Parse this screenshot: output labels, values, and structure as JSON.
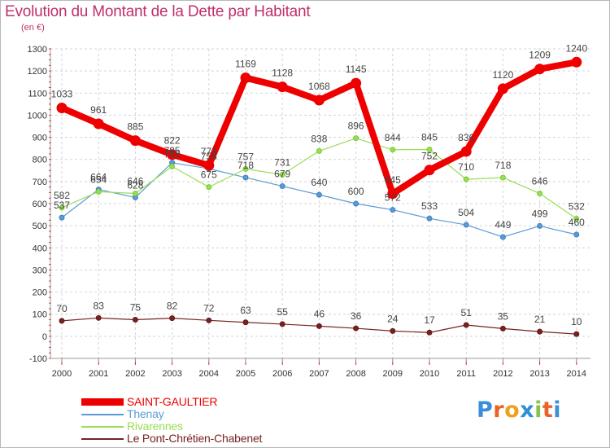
{
  "title": "Evolution du Montant de la Dette par Habitant",
  "subtitle": "(en €)",
  "chart_data": {
    "type": "line",
    "title": "Evolution du Montant de la Dette par Habitant",
    "subtitle": "(en €)",
    "x": [
      2000,
      2001,
      2002,
      2003,
      2004,
      2005,
      2006,
      2007,
      2008,
      2009,
      2010,
      2011,
      2012,
      2013,
      2014
    ],
    "x_tick_labels": [
      "2000",
      "2001",
      "2002",
      "2003",
      "2004",
      "2005",
      "2006",
      "2007",
      "2008",
      "2009",
      "2010",
      "2011",
      "2012",
      "2013",
      "2014"
    ],
    "ylim": [
      -100,
      1300
    ],
    "y_ticks": [
      -100,
      0,
      100,
      200,
      300,
      400,
      500,
      600,
      700,
      800,
      900,
      1000,
      1100,
      1200,
      1300
    ],
    "grid": "dashed",
    "legend_position": "bottom-left",
    "series": [
      {
        "name": "SAINT-GAULTIER",
        "color": "#ee0000",
        "values": [
          1033,
          961,
          885,
          822,
          773,
          1169,
          1128,
          1068,
          1145,
          645,
          752,
          836,
          1120,
          1209,
          1240
        ],
        "labels": [
          "1033",
          "961",
          "885",
          "822",
          "773",
          "1169",
          "1128",
          "1068",
          "1145",
          "645",
          "752",
          "836",
          "1120",
          "1209",
          "1240"
        ]
      },
      {
        "name": "Thenay",
        "color": "#5b9bd5",
        "values": [
          537,
          664,
          628,
          785,
          758,
          718,
          679,
          640,
          600,
          572,
          533,
          504,
          449,
          499,
          460
        ],
        "labels": [
          "537",
          "664",
          "628",
          "785",
          "758",
          "718",
          "679",
          "640",
          "600",
          "572",
          "533",
          "504",
          "449",
          "499",
          "460"
        ]
      },
      {
        "name": "Rivarennes",
        "color": "#99dd55",
        "values": [
          582,
          654,
          646,
          768,
          675,
          757,
          731,
          838,
          896,
          844,
          845,
          710,
          718,
          646,
          532
        ],
        "labels": [
          "582",
          "654",
          "646",
          "768",
          "675",
          "757",
          "731",
          "838",
          "896",
          "844",
          "845",
          "710",
          "718",
          "646",
          "532"
        ]
      },
      {
        "name": "Le Pont-Chrétien-Chabenet",
        "color": "#772222",
        "values": [
          70,
          83,
          75,
          82,
          72,
          63,
          55,
          46,
          36,
          24,
          17,
          51,
          35,
          21,
          10
        ],
        "labels": [
          "70",
          "83",
          "75",
          "82",
          "72",
          "63",
          "55",
          "46",
          "36",
          "24",
          "17",
          "51",
          "35",
          "21",
          "10"
        ]
      }
    ]
  },
  "legend": {
    "items": [
      {
        "label": "SAINT-GAULTIER",
        "color": "#ee0000",
        "thickness": 9
      },
      {
        "label": "Thenay",
        "color": "#5b9bd5",
        "thickness": 2
      },
      {
        "label": "Rivarennes",
        "color": "#99dd55",
        "thickness": 2
      },
      {
        "label": "Le Pont-Chrétien-Chabenet",
        "color": "#772222",
        "thickness": 2
      }
    ]
  },
  "logo": {
    "letters": [
      "P",
      "r",
      "o",
      "x",
      "i",
      "t",
      "i"
    ],
    "colors": [
      "#3a8fd8",
      "#e8622a",
      "#f0a020",
      "#2e8fd6",
      "#8bc34a",
      "#e8622a",
      "#3a8fd8"
    ]
  }
}
